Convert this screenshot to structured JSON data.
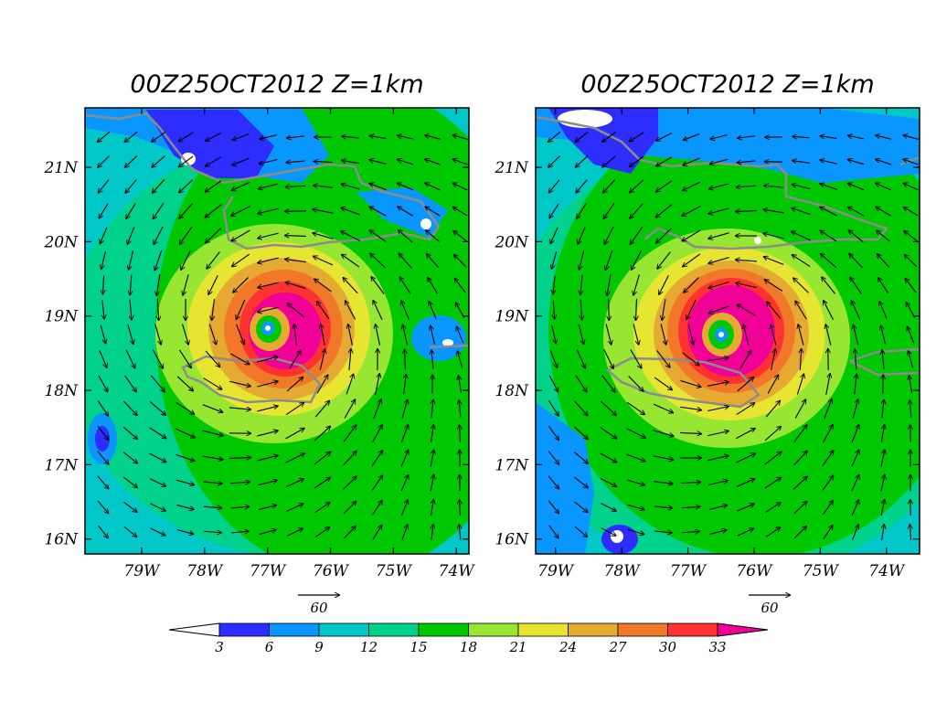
{
  "panels": [
    {
      "title": "00Z25OCT2012 Z=1km",
      "lon_range": [
        -79.9,
        -73.8
      ],
      "lat_range": [
        15.8,
        21.8
      ],
      "lon_ticks": [
        "79W",
        "78W",
        "77W",
        "76W",
        "75W",
        "74W"
      ],
      "lon_tick_values": [
        -79,
        -78,
        -77,
        -76,
        -75,
        -74
      ],
      "lat_ticks": [
        "16N",
        "17N",
        "18N",
        "19N",
        "20N",
        "21N"
      ],
      "lat_tick_values": [
        16,
        17,
        18,
        19,
        20,
        21
      ],
      "storm_center": [
        -77.0,
        18.8
      ],
      "reference_vector": "60"
    },
    {
      "title": "00Z25OCT2012 Z=1km",
      "lon_range": [
        -79.3,
        -73.5
      ],
      "lat_range": [
        15.8,
        21.8
      ],
      "lon_ticks": [
        "79W",
        "78W",
        "77W",
        "76W",
        "75W",
        "74W"
      ],
      "lon_tick_values": [
        -79,
        -78,
        -77,
        -76,
        -75,
        -74
      ],
      "lat_ticks": [
        "16N",
        "17N",
        "18N",
        "19N",
        "20N",
        "21N"
      ],
      "lat_tick_values": [
        16,
        17,
        18,
        19,
        20,
        21
      ],
      "storm_center": [
        -76.5,
        18.75
      ],
      "reference_vector": "60"
    }
  ],
  "colorbar": {
    "labels": [
      "3",
      "6",
      "9",
      "12",
      "15",
      "18",
      "21",
      "24",
      "27",
      "30",
      "33"
    ],
    "colors": [
      "#ffffff",
      "#2d2dff",
      "#0a96ff",
      "#00c8c8",
      "#00d28c",
      "#00c800",
      "#96e632",
      "#e6e632",
      "#e6aa32",
      "#f07828",
      "#ff3232",
      "#f00096"
    ]
  },
  "colors": {
    "coastline": "#8c8c8c",
    "land_white": "#ffffff",
    "frame": "#000000"
  }
}
